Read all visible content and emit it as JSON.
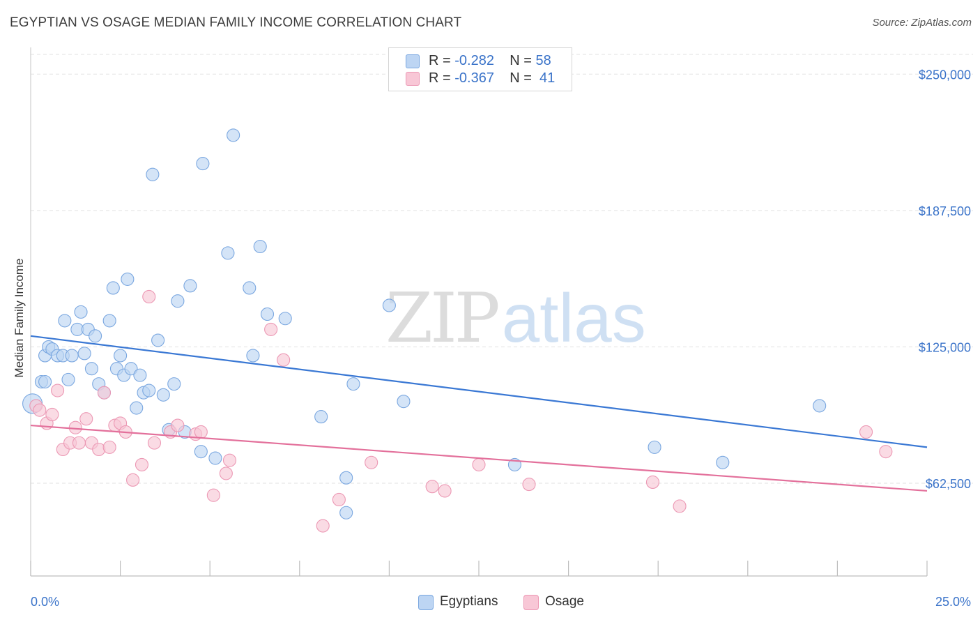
{
  "title": "EGYPTIAN VS OSAGE MEDIAN FAMILY INCOME CORRELATION CHART",
  "source": "Source: ZipAtlas.com",
  "watermark": {
    "zip": "ZIP",
    "atlas": "atlas"
  },
  "legend": [
    {
      "r_label": "R = ",
      "r_value": "-0.282",
      "n_label": "N = ",
      "n_value": "58",
      "color": "#a9c8f0"
    },
    {
      "r_label": "R = ",
      "r_value": "-0.367",
      "n_label": "N = ",
      "n_value": "41",
      "color": "#f7bccd"
    }
  ],
  "colors": {
    "blue": "#3a78d4",
    "pink": "#e3709b",
    "blue_fill": "#bdd5f3",
    "pink_fill": "#f8c7d6",
    "tick_label": "#3a73c9"
  },
  "chart_data": {
    "type": "scatter",
    "ylabel": "Median Family Income",
    "xlim": [
      0,
      25
    ],
    "ylim": [
      20000,
      260000
    ],
    "x_tick_labels": [
      {
        "value": 0,
        "label": "0.0%"
      },
      {
        "value": 25,
        "label": "25.0%"
      }
    ],
    "y_ticks": [
      {
        "value": 62500,
        "label": "$62,500"
      },
      {
        "value": 125000,
        "label": "$125,000"
      },
      {
        "value": 187500,
        "label": "$187,500"
      },
      {
        "value": 250000,
        "label": "$250,000"
      }
    ],
    "legend_placement": "top-center",
    "grid": true,
    "series": [
      {
        "name": "Egyptians",
        "color": "#3a78d4",
        "trend": {
          "x": [
            0,
            25
          ],
          "y": [
            130000,
            79000
          ]
        },
        "points": [
          [
            0.05,
            99000
          ],
          [
            0.3,
            109000
          ],
          [
            0.4,
            121000
          ],
          [
            0.4,
            109000
          ],
          [
            0.5,
            125000
          ],
          [
            0.6,
            124000
          ],
          [
            0.75,
            121000
          ],
          [
            0.9,
            121000
          ],
          [
            0.95,
            137000
          ],
          [
            1.05,
            110000
          ],
          [
            1.15,
            121000
          ],
          [
            1.3,
            133000
          ],
          [
            1.4,
            141000
          ],
          [
            1.5,
            122000
          ],
          [
            1.6,
            133000
          ],
          [
            1.7,
            115000
          ],
          [
            1.8,
            130000
          ],
          [
            1.9,
            108000
          ],
          [
            2.05,
            104000
          ],
          [
            2.2,
            137000
          ],
          [
            2.3,
            152000
          ],
          [
            2.4,
            115000
          ],
          [
            2.5,
            121000
          ],
          [
            2.6,
            112000
          ],
          [
            2.7,
            156000
          ],
          [
            2.8,
            115000
          ],
          [
            2.95,
            97000
          ],
          [
            3.05,
            112000
          ],
          [
            3.15,
            104000
          ],
          [
            3.3,
            105000
          ],
          [
            3.4,
            204000
          ],
          [
            3.55,
            128000
          ],
          [
            3.7,
            103000
          ],
          [
            3.85,
            87000
          ],
          [
            4.0,
            108000
          ],
          [
            4.1,
            146000
          ],
          [
            4.3,
            86000
          ],
          [
            4.45,
            153000
          ],
          [
            4.75,
            77000
          ],
          [
            4.8,
            209000
          ],
          [
            5.15,
            74000
          ],
          [
            5.5,
            168000
          ],
          [
            5.65,
            222000
          ],
          [
            6.1,
            152000
          ],
          [
            6.2,
            121000
          ],
          [
            6.4,
            171000
          ],
          [
            6.6,
            140000
          ],
          [
            7.1,
            138000
          ],
          [
            8.1,
            93000
          ],
          [
            8.8,
            65000
          ],
          [
            8.8,
            49000
          ],
          [
            9.0,
            108000
          ],
          [
            10.0,
            144000
          ],
          [
            10.4,
            100000
          ],
          [
            13.5,
            71000
          ],
          [
            17.4,
            79000
          ],
          [
            19.3,
            72000
          ],
          [
            22.0,
            98000
          ]
        ]
      },
      {
        "name": "Osage",
        "color": "#e3709b",
        "trend": {
          "x": [
            0,
            25
          ],
          "y": [
            89000,
            59000
          ]
        },
        "points": [
          [
            0.15,
            98000
          ],
          [
            0.25,
            96000
          ],
          [
            0.45,
            90000
          ],
          [
            0.6,
            94000
          ],
          [
            0.75,
            105000
          ],
          [
            0.9,
            78000
          ],
          [
            1.1,
            81000
          ],
          [
            1.25,
            88000
          ],
          [
            1.35,
            81000
          ],
          [
            1.55,
            92000
          ],
          [
            1.7,
            81000
          ],
          [
            1.9,
            78000
          ],
          [
            2.05,
            104000
          ],
          [
            2.2,
            79000
          ],
          [
            2.35,
            89000
          ],
          [
            2.5,
            90000
          ],
          [
            2.65,
            86000
          ],
          [
            2.85,
            64000
          ],
          [
            3.1,
            71000
          ],
          [
            3.3,
            148000
          ],
          [
            3.45,
            81000
          ],
          [
            3.9,
            86000
          ],
          [
            4.1,
            89000
          ],
          [
            4.6,
            85000
          ],
          [
            4.75,
            86000
          ],
          [
            5.1,
            57000
          ],
          [
            5.45,
            67000
          ],
          [
            5.55,
            73000
          ],
          [
            6.7,
            133000
          ],
          [
            7.05,
            119000
          ],
          [
            8.15,
            43000
          ],
          [
            8.6,
            55000
          ],
          [
            9.5,
            72000
          ],
          [
            11.2,
            61000
          ],
          [
            11.55,
            59000
          ],
          [
            12.5,
            71000
          ],
          [
            13.9,
            62000
          ],
          [
            17.35,
            63000
          ],
          [
            18.1,
            52000
          ],
          [
            23.3,
            86000
          ],
          [
            23.85,
            77000
          ]
        ]
      }
    ]
  }
}
